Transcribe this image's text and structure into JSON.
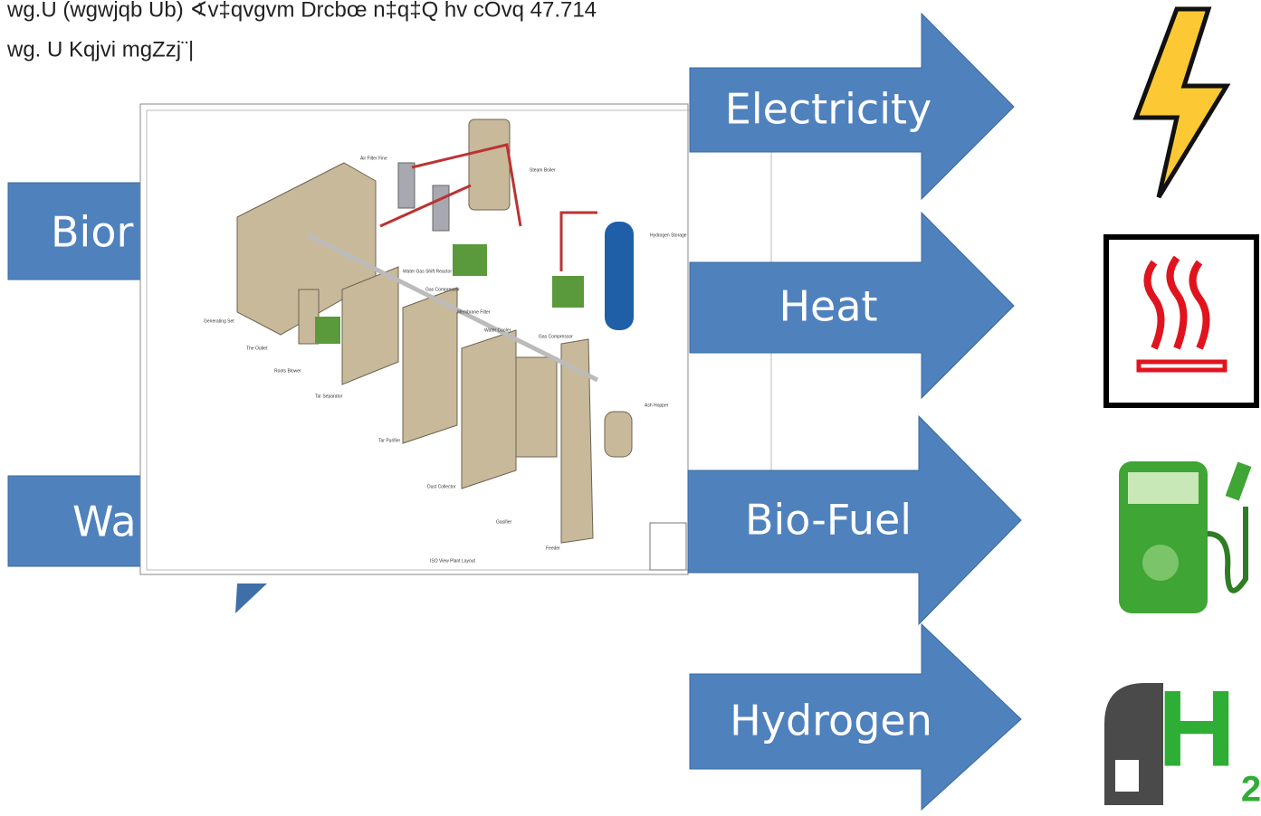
{
  "header": {
    "line1": "wg.U (wgwjqb Ub) ∢v‡qvgvm Drcbœ n‡q‡Q hv cÖvq 47.714",
    "line2": "wg. U Kqjvi mgZzj¨|"
  },
  "inputs": [
    "Bior",
    "Wa"
  ],
  "outputs": [
    "Electricity",
    "Heat",
    "Bio-Fuel",
    "Hydrogen"
  ],
  "plant_labels": [
    "Air Filter Fine",
    "Steam Boiler",
    "Hydrogen Storage",
    "Water Gas Shift Reactor",
    "Gas Compressor",
    "Membrane Filter",
    "Water Cooler",
    "Gas Compressor",
    "Generating Set",
    "The Outlet",
    "Roots Blower",
    "Tar Separator",
    "Tar Purifier",
    "Dust Collector",
    "Gasifier",
    "Feeder",
    "Ash Hopper",
    "ISO View Plant Layout"
  ],
  "icons": {
    "h2_letter": "H",
    "h2_sub": "2"
  }
}
